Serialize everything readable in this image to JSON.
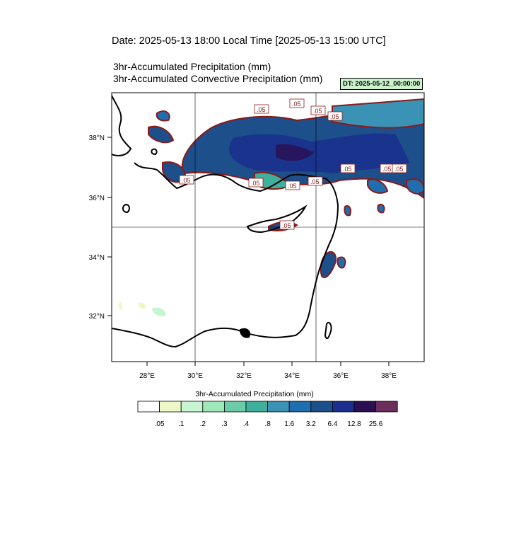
{
  "header": {
    "date_line": "Date: 2025-05-13  18:00 Local Time [2025-05-13  15:00 UTC]",
    "field1": "3hr-Accumulated Precipitation   (mm)",
    "field2": "3hr-Accumulated Convective Precipitation   (mm)",
    "dt_badge": "DT: 2025-05-12_00:00:00"
  },
  "axes": {
    "x_ticks": [
      "28°E",
      "30°E",
      "32°E",
      "34°E",
      "36°E",
      "38°E"
    ],
    "y_ticks": [
      "38°N",
      "36°N",
      "34°N",
      "32°N"
    ]
  },
  "contour_labels": [
    ".05",
    ".05",
    ".05",
    ".05",
    ".05",
    ".05",
    ".05",
    ".05",
    ".05",
    ".05",
    ".05",
    ".05"
  ],
  "colorbar": {
    "title": "3hr-Accumulated Precipitation  (mm)",
    "levels": [
      ".05",
      ".1",
      ".2",
      ".3",
      ".4",
      ".8",
      "1.6",
      "3.2",
      "6.4",
      "12.8",
      "25.6"
    ],
    "colors": [
      "#ffffff",
      "#eef8c6",
      "#c6f5d2",
      "#9fe8b8",
      "#6cccaa",
      "#3eb09c",
      "#3a92b4",
      "#1f6fb0",
      "#1d4f8a",
      "#1a2f8e",
      "#2a0f52",
      "#6a2d5c"
    ]
  }
}
